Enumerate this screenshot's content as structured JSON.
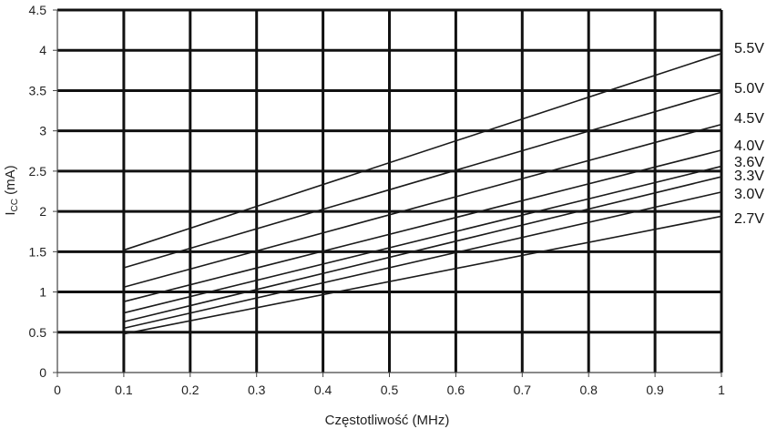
{
  "chart_data": {
    "type": "line",
    "xlabel": "Częstotliwość (MHz)",
    "ylabel_main": "I",
    "ylabel_sub": "CC",
    "ylabel_suffix": " (mA)",
    "xlim": [
      0,
      1
    ],
    "ylim": [
      0,
      4.5
    ],
    "x_ticks": [
      "0",
      "0.1",
      "0.2",
      "0.3",
      "0.4",
      "0.5",
      "0.6",
      "0.7",
      "0.8",
      "0.9",
      "1"
    ],
    "y_ticks": [
      "0",
      "0.5",
      "1",
      "1.5",
      "2",
      "2.5",
      "3",
      "3.5",
      "4",
      "4.5"
    ],
    "grid": true,
    "series": [
      {
        "name": "5.5V",
        "x": [
          0.1,
          1
        ],
        "y": [
          1.52,
          3.96
        ]
      },
      {
        "name": "5.0V",
        "x": [
          0.1,
          1
        ],
        "y": [
          1.3,
          3.48
        ]
      },
      {
        "name": "4.5V",
        "x": [
          0.1,
          1
        ],
        "y": [
          1.06,
          3.08
        ]
      },
      {
        "name": "4.0V",
        "x": [
          0.1,
          1
        ],
        "y": [
          0.88,
          2.76
        ]
      },
      {
        "name": "3.6V",
        "x": [
          0.1,
          1
        ],
        "y": [
          0.74,
          2.56
        ]
      },
      {
        "name": "3.3V",
        "x": [
          0.1,
          1
        ],
        "y": [
          0.63,
          2.43
        ]
      },
      {
        "name": "3.0V",
        "x": [
          0.1,
          1
        ],
        "y": [
          0.55,
          2.24
        ]
      },
      {
        "name": "2.7V",
        "x": [
          0.1,
          1
        ],
        "y": [
          0.48,
          1.94
        ]
      }
    ]
  }
}
